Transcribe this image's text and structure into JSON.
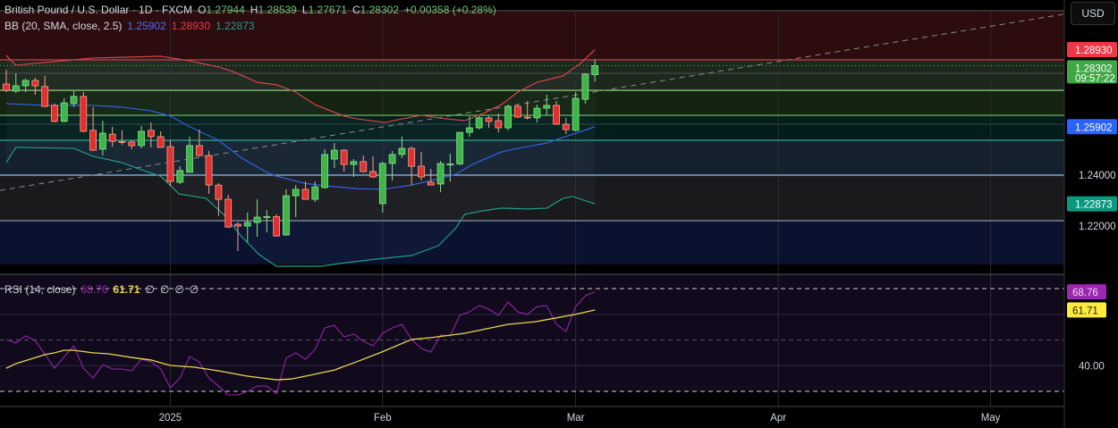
{
  "header": {
    "symbol": "British Pound / U.S. Dollar · 1D · FXCM",
    "open_label": "O",
    "open": "1.27944",
    "high_label": "H",
    "high": "1.28539",
    "low_label": "L",
    "low": "1.27671",
    "close_label": "C",
    "close": "1.28302",
    "change": "+0.00358 (+0.28%)",
    "bb_label": "BB (20, SMA, close, 2.5)",
    "bb_basis": "1.25902",
    "bb_upper": "1.28930",
    "bb_lower": "1.22873",
    "rsi_label": "RSI (14, close)",
    "rsi_value": "68.76",
    "rsi_ma": "61.71",
    "rsi_extra": [
      "∅",
      "∅",
      "∅",
      "∅"
    ]
  },
  "currency_button": "USD",
  "colors": {
    "up": "#3fb449",
    "up_border": "#86e08a",
    "down": "#e0302f",
    "down_border": "#f5a48c",
    "bb_upper": "#d8434e",
    "bb_basis": "#2f62e6",
    "bb_lower": "#1e9c88",
    "rsi": "#9c27b0",
    "rsi_ma": "#e8d44d"
  },
  "chart_data": [
    {
      "type": "candlestick",
      "title": "British Pound / U.S. Dollar · 1D · FXCM",
      "ylim": [
        1.205,
        1.3046
      ],
      "y_ticks": [
        "1.24000",
        "1.22000"
      ],
      "x_ticks": [
        {
          "label": "2025",
          "bar": 17
        },
        {
          "label": "Feb",
          "bar": 39
        },
        {
          "label": "Mar",
          "bar": 59
        },
        {
          "label": "Apr",
          "bar": 80
        },
        {
          "label": "May",
          "bar": 102
        }
      ],
      "price_labels": [
        {
          "text": "1.28930",
          "price": 1.2893,
          "color": "#f23645"
        },
        {
          "text": "1.28302",
          "sub": "09:57:22",
          "price": 1.28302,
          "color": "#3fa845"
        },
        {
          "text": "1.25902",
          "price": 1.25902,
          "color": "#2962ff"
        },
        {
          "text": "1.22873",
          "price": 1.22873,
          "color": "#089981"
        }
      ],
      "last_price": 1.28302,
      "candles_ohlc": [
        [
          1.2758,
          1.2814,
          1.2726,
          1.2733
        ],
        [
          1.273,
          1.28,
          1.2723,
          1.2751
        ],
        [
          1.2751,
          1.2779,
          1.2726,
          1.2772
        ],
        [
          1.2772,
          1.2783,
          1.2716,
          1.2751
        ],
        [
          1.2748,
          1.279,
          1.2667,
          1.267
        ],
        [
          1.2674,
          1.2681,
          1.2607,
          1.2611
        ],
        [
          1.2611,
          1.2702,
          1.2607,
          1.2684
        ],
        [
          1.2681,
          1.273,
          1.2667,
          1.2709
        ],
        [
          1.2709,
          1.2726,
          1.2568,
          1.2572
        ],
        [
          1.2576,
          1.2667,
          1.2495,
          1.2498
        ],
        [
          1.2502,
          1.2614,
          1.2477,
          1.2565
        ],
        [
          1.2561,
          1.259,
          1.2512,
          1.2533
        ],
        [
          1.2532,
          1.2576,
          1.2519,
          1.253
        ],
        [
          1.253,
          1.2537,
          1.2502,
          1.2516
        ],
        [
          1.2516,
          1.2593,
          1.2505,
          1.2572
        ],
        [
          1.2576,
          1.2607,
          1.2509,
          1.2551
        ],
        [
          1.2551,
          1.2572,
          1.2509,
          1.2509
        ],
        [
          1.2512,
          1.2537,
          1.2358,
          1.2375
        ],
        [
          1.2372,
          1.2435,
          1.2365,
          1.2418
        ],
        [
          1.2411,
          1.2551,
          1.2411,
          1.2516
        ],
        [
          1.2516,
          1.2579,
          1.2474,
          1.2477
        ],
        [
          1.2477,
          1.2495,
          1.2326,
          1.2361
        ],
        [
          1.2361,
          1.2368,
          1.2239,
          1.2305
        ],
        [
          1.2305,
          1.2323,
          1.2193,
          1.2196
        ],
        [
          1.2207,
          1.2214,
          1.2102,
          1.22
        ],
        [
          1.22,
          1.2253,
          1.2137,
          1.2214
        ],
        [
          1.2214,
          1.2305,
          1.2158,
          1.2235
        ],
        [
          1.2235,
          1.2263,
          1.2175,
          1.2237
        ],
        [
          1.2237,
          1.2246,
          1.2158,
          1.2161
        ],
        [
          1.2165,
          1.2344,
          1.2161,
          1.2319
        ],
        [
          1.2319,
          1.2361,
          1.2235,
          1.2344
        ],
        [
          1.2344,
          1.2375,
          1.2305,
          1.2305
        ],
        [
          1.2305,
          1.2375,
          1.2295,
          1.2354
        ],
        [
          1.2351,
          1.2502,
          1.2347,
          1.2481
        ],
        [
          1.2463,
          1.2526,
          1.2428,
          1.2498
        ],
        [
          1.2498,
          1.2502,
          1.2414,
          1.2442
        ],
        [
          1.2442,
          1.2463,
          1.2393,
          1.2453
        ],
        [
          1.2453,
          1.2477,
          1.2411,
          1.2414
        ],
        [
          1.2414,
          1.2474,
          1.2389,
          1.2393
        ],
        [
          1.2288,
          1.2453,
          1.2253,
          1.2446
        ],
        [
          1.2446,
          1.2495,
          1.2379,
          1.2481
        ],
        [
          1.2481,
          1.2551,
          1.2467,
          1.2505
        ],
        [
          1.2505,
          1.2512,
          1.2361,
          1.2435
        ],
        [
          1.2435,
          1.2491,
          1.2379,
          1.2393
        ],
        [
          1.2372,
          1.2425,
          1.2361,
          1.2361
        ],
        [
          1.2365,
          1.2456,
          1.2333,
          1.2446
        ],
        [
          1.2442,
          1.2484,
          1.2375,
          1.2444
        ],
        [
          1.2444,
          1.2568,
          1.2439,
          1.2568
        ],
        [
          1.2568,
          1.2632,
          1.2551,
          1.2586
        ],
        [
          1.2586,
          1.2632,
          1.2579,
          1.2625
        ],
        [
          1.2625,
          1.2632,
          1.2586,
          1.2611
        ],
        [
          1.2614,
          1.2642,
          1.2568,
          1.2586
        ],
        [
          1.2586,
          1.2677,
          1.2576,
          1.267
        ],
        [
          1.267,
          1.2677,
          1.2625,
          1.2628
        ],
        [
          1.2628,
          1.2691,
          1.2618,
          1.2625
        ],
        [
          1.2625,
          1.2677,
          1.2607,
          1.2663
        ],
        [
          1.2663,
          1.2716,
          1.2635,
          1.2674
        ],
        [
          1.2674,
          1.2691,
          1.2597,
          1.26
        ],
        [
          1.26,
          1.2625,
          1.2561,
          1.2579
        ],
        [
          1.2576,
          1.2726,
          1.2572,
          1.2702
        ],
        [
          1.2698,
          1.28,
          1.2681,
          1.2797
        ],
        [
          1.27944,
          1.28539,
          1.27671,
          1.28302
        ]
      ],
      "bb_upper": [
        [
          0,
          1.287
        ],
        [
          1,
          1.2832
        ],
        [
          9,
          1.286
        ],
        [
          16,
          1.2867
        ],
        [
          19,
          1.2849
        ],
        [
          22,
          1.2825
        ],
        [
          23.5,
          1.2807
        ],
        [
          26,
          1.2765
        ],
        [
          28,
          1.2755
        ],
        [
          30,
          1.2726
        ],
        [
          32,
          1.2677
        ],
        [
          35,
          1.2632
        ],
        [
          36.4,
          1.2621
        ],
        [
          39.2,
          1.2607
        ],
        [
          41,
          1.2621
        ],
        [
          43,
          1.2635
        ],
        [
          45.7,
          1.2621
        ],
        [
          47.5,
          1.2614
        ],
        [
          49.4,
          1.2642
        ],
        [
          51.3,
          1.2677
        ],
        [
          53,
          1.2726
        ],
        [
          55,
          1.2765
        ],
        [
          57.7,
          1.279
        ],
        [
          59.6,
          1.2842
        ],
        [
          61,
          1.2893
        ]
      ],
      "bb_basis": [
        [
          0,
          1.2681
        ],
        [
          4,
          1.2674
        ],
        [
          9,
          1.2674
        ],
        [
          12,
          1.2667
        ],
        [
          15,
          1.2653
        ],
        [
          17,
          1.2632
        ],
        [
          19,
          1.259
        ],
        [
          22,
          1.2537
        ],
        [
          24.4,
          1.2467
        ],
        [
          27,
          1.2411
        ],
        [
          28,
          1.2396
        ],
        [
          30.9,
          1.2368
        ],
        [
          33,
          1.2358
        ],
        [
          36.4,
          1.2347
        ],
        [
          39,
          1.2344
        ],
        [
          42,
          1.2361
        ],
        [
          44.8,
          1.2386
        ],
        [
          46.6,
          1.2404
        ],
        [
          48.5,
          1.2446
        ],
        [
          51.3,
          1.2491
        ],
        [
          53,
          1.2505
        ],
        [
          56,
          1.2526
        ],
        [
          58.7,
          1.2561
        ],
        [
          61,
          1.259
        ]
      ],
      "bb_lower": [
        [
          0,
          1.2449
        ],
        [
          1,
          1.2509
        ],
        [
          7,
          1.2505
        ],
        [
          9,
          1.2474
        ],
        [
          12,
          1.2449
        ],
        [
          14,
          1.2421
        ],
        [
          16,
          1.2396
        ],
        [
          17.9,
          1.2326
        ],
        [
          20.7,
          1.2309
        ],
        [
          22.5,
          1.2246
        ],
        [
          24.4,
          1.2158
        ],
        [
          26.2,
          1.2088
        ],
        [
          28,
          1.2042
        ],
        [
          32.6,
          1.2042
        ],
        [
          34.6,
          1.2053
        ],
        [
          38.3,
          1.207
        ],
        [
          42,
          1.2084
        ],
        [
          44.8,
          1.2123
        ],
        [
          46.6,
          1.2193
        ],
        [
          47.5,
          1.2246
        ],
        [
          49.4,
          1.226
        ],
        [
          51.3,
          1.227
        ],
        [
          54,
          1.2267
        ],
        [
          56,
          1.227
        ],
        [
          57.7,
          1.2309
        ],
        [
          58.7,
          1.2316
        ],
        [
          61,
          1.2287
        ]
      ],
      "levels": [
        {
          "price": 1.2853,
          "color": "#f23645"
        },
        {
          "price": 1.28,
          "color": "#4a4a4a"
        },
        {
          "price": 1.2733,
          "color": "#8ed07e"
        },
        {
          "price": 1.2635,
          "color": "#6cc46a"
        },
        {
          "price": 1.26,
          "color": "#26403c"
        },
        {
          "price": 1.2537,
          "color": "#34a394"
        },
        {
          "price": 1.24,
          "color": "#8fbfee"
        },
        {
          "price": 1.2221,
          "color": "#8d95a8"
        }
      ],
      "zones": [
        {
          "from": 1.3046,
          "to": 1.2853,
          "color": "#2d0c10"
        },
        {
          "from": 1.2853,
          "to": 1.2733,
          "color": "#1d281c"
        },
        {
          "from": 1.2733,
          "to": 1.2635,
          "color": "#142410"
        },
        {
          "from": 1.2635,
          "to": 1.2537,
          "color": "#031e1a"
        },
        {
          "from": 1.2537,
          "to": 1.24,
          "color": "#15222e"
        },
        {
          "from": 1.24,
          "to": 1.2221,
          "color": "#1a1a1d"
        },
        {
          "from": 1.2221,
          "to": 1.205,
          "color": "#0a1230"
        }
      ],
      "trendline": [
        [
          -0.65,
          1.234
        ],
        [
          110,
          1.3035
        ]
      ]
    },
    {
      "type": "line",
      "title": "RSI (14, close)",
      "ylim": [
        24.3,
        75.2
      ],
      "y_ticks": [
        "40.00"
      ],
      "bands": [
        70,
        50,
        30
      ],
      "grid": [
        60,
        40
      ],
      "value_labels": [
        {
          "text": "68.76",
          "value": 68.76,
          "color": "#9c27b0",
          "text_color": "#f0d8f5"
        },
        {
          "text": "61.71",
          "value": 61.71,
          "color": "#ffeb3b",
          "text_color": "#222"
        }
      ],
      "rsi": [
        50.2,
        48.8,
        51.6,
        49.8,
        44.5,
        39,
        43.5,
        47.7,
        39,
        35.2,
        40.4,
        38.7,
        38.7,
        38,
        42.5,
        41.5,
        38.7,
        31.4,
        35.2,
        43.6,
        41.5,
        35.2,
        32.1,
        28.6,
        28.6,
        30,
        32.1,
        32.1,
        29,
        42.9,
        45,
        42.5,
        46.3,
        54.7,
        55.7,
        51.2,
        52.3,
        49.5,
        47.7,
        52.6,
        54.7,
        56.1,
        50.2,
        46.7,
        45.3,
        51.9,
        51.6,
        59.6,
        61,
        63.4,
        62,
        59.6,
        64.8,
        61,
        59.9,
        63,
        63.4,
        56.1,
        53.3,
        63,
        67.2,
        68.76
      ],
      "rsi_ma": [
        [
          0,
          39
        ],
        [
          1,
          40.8
        ],
        [
          4,
          44.3
        ],
        [
          5,
          45
        ],
        [
          6,
          46
        ],
        [
          7,
          46
        ],
        [
          9,
          45
        ],
        [
          10.6,
          44.6
        ],
        [
          13,
          43.2
        ],
        [
          15,
          42.2
        ],
        [
          17,
          40.1
        ],
        [
          19.5,
          39.4
        ],
        [
          22,
          38
        ],
        [
          25,
          35.9
        ],
        [
          28,
          34.5
        ],
        [
          29.5,
          34.8
        ],
        [
          31.5,
          36.3
        ],
        [
          34,
          38.3
        ],
        [
          36.3,
          41.5
        ],
        [
          38.7,
          45
        ],
        [
          42,
          50.2
        ],
        [
          44,
          50.9
        ],
        [
          47.5,
          52.6
        ],
        [
          52,
          56.1
        ],
        [
          54.8,
          57.1
        ],
        [
          56.4,
          58.2
        ],
        [
          58.9,
          59.9
        ],
        [
          61,
          61.71
        ]
      ]
    }
  ]
}
